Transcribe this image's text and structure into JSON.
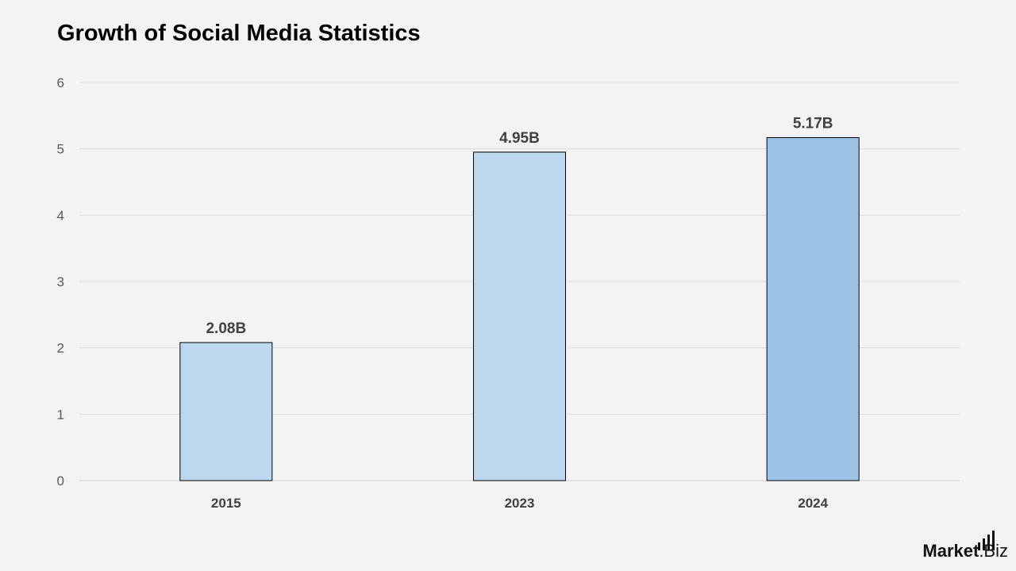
{
  "chart_data": {
    "type": "bar",
    "title": "Growth of Social Media Statistics",
    "categories": [
      "2015",
      "2023",
      "2024"
    ],
    "values": [
      2.08,
      4.95,
      5.17
    ],
    "data_labels": [
      "2.08B",
      "4.95B",
      "5.17B"
    ],
    "bar_colors": [
      "#bdd7ee",
      "#bdd7ee",
      "#9dc3e6"
    ],
    "ylim": [
      0,
      6
    ],
    "yticks": [
      "0",
      "1",
      "2",
      "3",
      "4",
      "5",
      "6"
    ],
    "grid": true,
    "legend": "none"
  },
  "branding": {
    "logo_text_bold": "Market",
    "logo_text_light": ".Biz"
  }
}
